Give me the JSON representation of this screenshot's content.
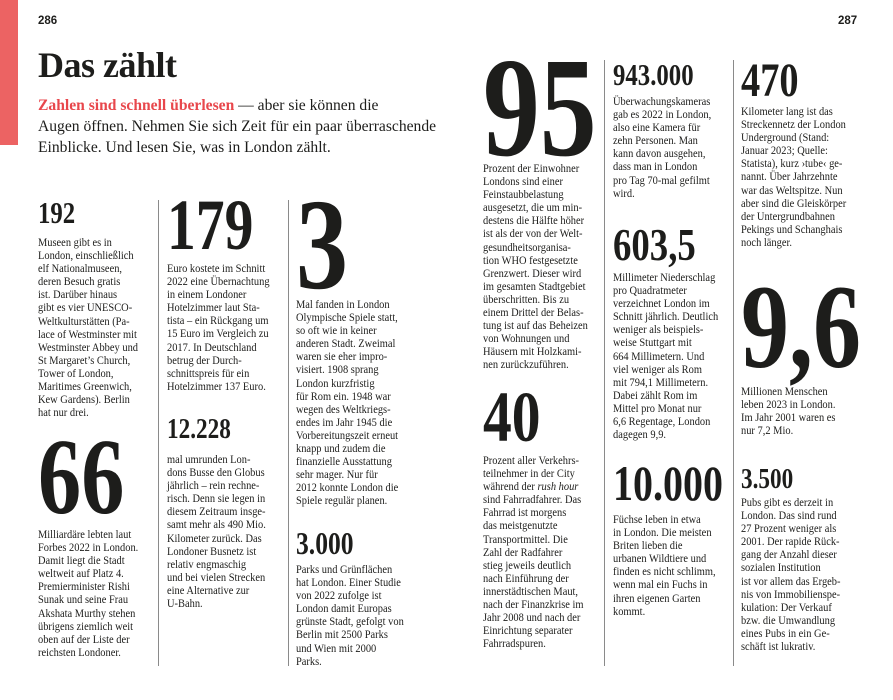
{
  "colors": {
    "accent": "#e8474c",
    "bar": "#ec6363"
  },
  "left_page": {
    "page_number": "286",
    "title": "Das zählt",
    "intro_highlight": "Zahlen sind schnell überlesen",
    "intro_text": " — aber sie können die\nAugen öffnen. Nehmen Sie sich Zeit für ein paar überraschende\nEinblicke. Und lesen Sie, was in London zählt."
  },
  "right_page": {
    "page_number": "287"
  },
  "facts": {
    "f192": {
      "number": "192",
      "text": "Museen gibt es in\nLondon, einschließlich\nelf Nationalmuseen,\nderen Besuch gratis\nist. Darüber hinaus\ngibt es vier UNESCO-\nWeltkulturstätten (Pa-\nlace of Westminster mit\nWestminster Abbey und\nSt Margaret’s Church,\nTower of London,\nMaritimes Greenwich,\nKew Gardens). Berlin\nhat nur drei."
    },
    "f66": {
      "number": "66",
      "text": "Milliardäre lebten laut\nForbes 2022 in London.\nDamit liegt die Stadt\nweltweit auf Platz 4.\nPremierminister Rishi\nSunak und seine Frau\nAkshata Murthy stehen\nübrigens ziemlich weit\noben auf der Liste der\nreichsten Londoner."
    },
    "f179": {
      "number": "179",
      "text": "Euro kostete im Schnitt\n2022 eine Übernachtung\nin einem Londoner\nHotelzimmer laut Sta-\ntista – ein Rückgang um\n15 Euro im Vergleich zu\n2017. In Deutschland\nbetrug der Durch-\nschnittspreis für ein\nHotelzimmer 137 Euro."
    },
    "f12228": {
      "number": "12.228",
      "text": "mal umrunden Lon-\ndons Busse den Globus\njährlich – rein rechne-\nrisch. Denn sie legen in\ndiesem Zeitraum insge-\nsamt mehr als 490 Mio.\nKilometer zurück. Das\nLondoner Busnetz ist\nrelativ engmaschig\nund bei vielen Strecken\neine Alternative zur\nU-Bahn."
    },
    "f3": {
      "number": "3",
      "text": "Mal fanden in London\nOlympische Spiele statt,\nso oft wie in keiner\nanderen Stadt. Zweimal\nwaren sie eher impro-\nvisiert. 1908 sprang\nLondon kurzfristig\nfür Rom ein. 1948 war\nwegen des Weltkriegs-\nendes im Jahr 1945 die\nVorbereitungszeit erneut\nknapp und zudem die\nfinanzielle Ausstattung\nsehr mager. Nur für\n2012 konnte London die\nSpiele regulär planen."
    },
    "f3000": {
      "number": "3.000",
      "text": "Parks und Grünflächen\nhat London. Einer Studie\nvon 2022 zufolge ist\nLondon damit Europas\ngrünste Stadt, gefolgt von\nBerlin mit 2500 Parks\nund Wien mit 2000\nParks."
    },
    "f95": {
      "number": "95",
      "text": "Prozent der Einwohner\nLondons sind einer\nFeinstaubbelastung\nausgesetzt, die um min-\ndestens die Hälfte höher\nist als der von der Welt-\ngesundheitsorganisa-\ntion WHO festgesetzte\nGrenzwert. Dieser wird\nim gesamten Stadtgebiet\nüberschritten. Bis zu\neinem Drittel der Belas-\ntung ist auf das Beheizen\nvon Wohnungen und\nHäusern mit Holzkami-\nnen zurückzuführen."
    },
    "f40": {
      "number": "40",
      "text_a": "Prozent aller Verkehrs-\nteilnehmer in der City\nwährend der ",
      "text_italic": "rush hour",
      "text_b": "\nsind Fahrradfahrer. Das\nFahrrad ist morgens\ndas meistgenutzte\nTransportmittel. Die\nZahl der Radfahrer\nstieg jeweils deutlich\nnach Einführung der\ninnerstädtischen Maut,\nnach der Finanzkrise im\nJahr 2008 und nach der\nEinrichtung separater\nFahrradspuren."
    },
    "f943000": {
      "number": "943.000",
      "text": "Überwachungskameras\ngab es 2022 in London,\nalso eine Kamera für\nzehn Personen. Man\nkann davon ausgehen,\ndass man in London\npro Tag 70-mal gefilmt\nwird."
    },
    "f6035": {
      "number": "603,5",
      "text": "Millimeter Niederschlag\npro Quadratmeter\nverzeichnet London im\nSchnitt jährlich. Deutlich\nweniger als beispiels-\nweise Stuttgart mit\n664 Millimetern. Und\nviel weniger als Rom\nmit 794,1 Millimetern.\nDabei zählt Rom im\nMittel pro Monat nur\n6,6 Regentage, London\ndagegen 9,9."
    },
    "f10000": {
      "number": "10.000",
      "text": "Füchse leben in etwa\nin London. Die meisten\nBriten lieben die\nurbanen Wildtiere und\nfinden es nicht schlimm,\nwenn mal ein Fuchs in\nihren eigenen Garten\nkommt."
    },
    "f470": {
      "number": "470",
      "text": "Kilometer lang ist das\nStreckennetz der London\nUnderground (Stand:\nJanuar 2023; Quelle:\nStatista), kurz ›tube‹ ge-\nnannt. Über Jahrzehnte\nwar das Weltspitze. Nun\naber sind die Gleiskörper\nder Untergrundbahnen\nPekings und Schanghais\nnoch länger."
    },
    "f96": {
      "number": "9,6",
      "text": "Millionen Menschen\nleben 2023 in London.\nIm Jahr 2001 waren es\nnur 7,2 Mio."
    },
    "f3500": {
      "number": "3.500",
      "text": "Pubs gibt es derzeit in\nLondon. Das sind rund\n27 Prozent weniger als\n2001. Der rapide Rück-\ngang der Anzahl dieser\nsozialen Institution\nist vor allem das Ergeb-\nnis von Immobilienspe-\nkulation: Der Verkauf\nbzw. die Umwandlung\neines Pubs in ein Ge-\nschäft ist lukrativ."
    }
  }
}
